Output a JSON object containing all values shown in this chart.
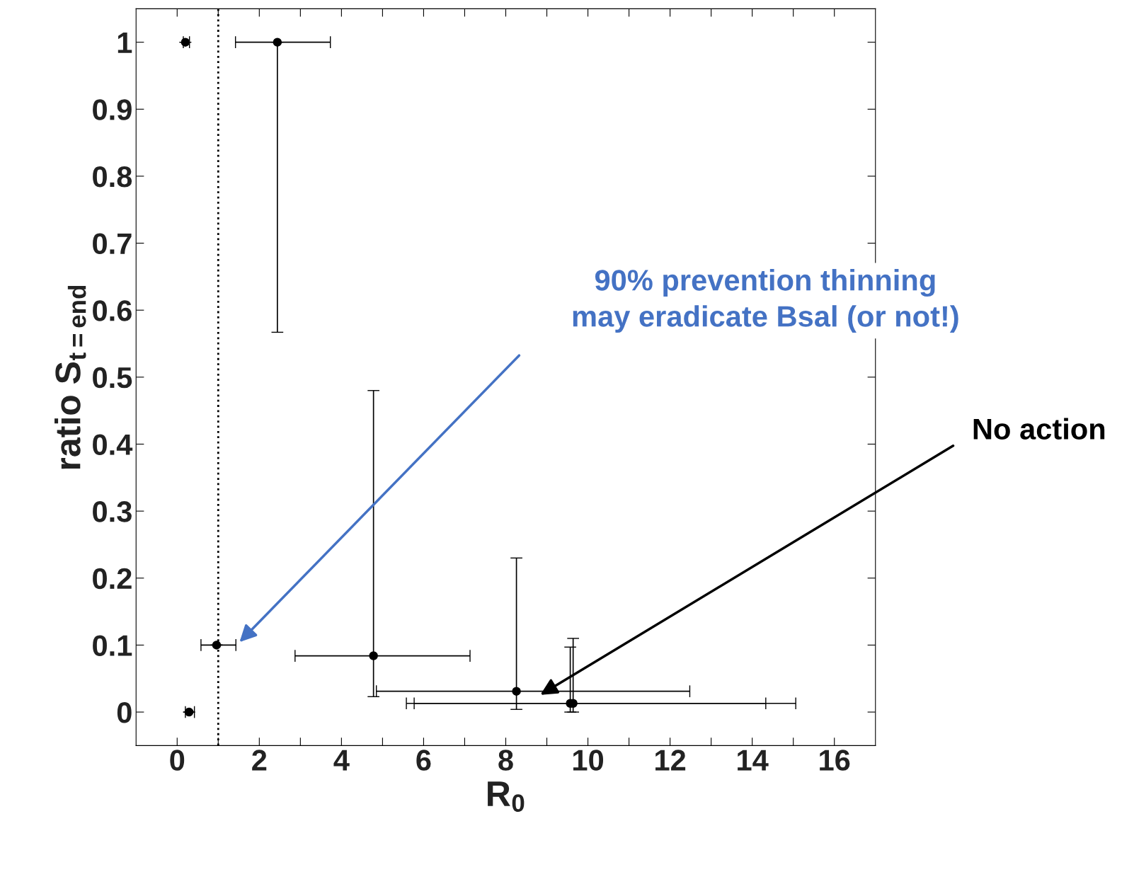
{
  "chart_data": {
    "type": "scatter",
    "xlabel": "R$_{0}$",
    "ylabel": "ratio S$_{t=end}$",
    "x": [
      0.2,
      2.44,
      0.96,
      0.29,
      4.78,
      8.26,
      9.57,
      9.64
    ],
    "values": [
      1,
      1,
      0.1,
      0,
      0.084,
      0.031,
      0.013,
      0.013
    ],
    "xerrors": [
      [
        0.15,
        0.3
      ],
      [
        1.42,
        3.73
      ],
      [
        0.58,
        1.43
      ],
      [
        0.2,
        0.42
      ],
      [
        2.87,
        7.13
      ],
      [
        4.85,
        12.48
      ],
      [
        5.58,
        14.33
      ],
      [
        5.77,
        15.06
      ]
    ],
    "errors": [
      null,
      [
        0.567,
        1
      ],
      null,
      null,
      [
        0.023,
        0.48
      ],
      [
        0.004,
        0.23
      ],
      [
        0,
        0.097
      ],
      [
        0,
        0.11
      ]
    ],
    "color": "#000000",
    "marker": "circle",
    "grid": false,
    "xlim": [
      -1,
      17
    ],
    "ylim": [
      -0.05,
      1.05
    ],
    "xticks": [
      0,
      {
        "value": 1,
        "label": null
      },
      2,
      {
        "value": 3,
        "label": null
      },
      4,
      {
        "value": 5,
        "label": null
      },
      6,
      {
        "value": 7,
        "label": null
      },
      8,
      {
        "value": 9,
        "label": null
      },
      10,
      {
        "value": 11,
        "label": null
      },
      12,
      {
        "value": 13,
        "label": null
      },
      14,
      {
        "value": 15,
        "label": null
      },
      16
    ],
    "yticks": [
      0,
      0.1,
      0.2,
      0.3,
      0.4,
      0.5,
      0.6,
      0.7,
      0.8,
      0.9,
      1
    ],
    "ref_lines": [
      {
        "axis": "x",
        "value": 1,
        "line_style": "dotted",
        "color": "#000000"
      }
    ],
    "annotations": [
      "90% prevention thinning\nmay eradicate Bsal (or not!)",
      "No action"
    ]
  }
}
